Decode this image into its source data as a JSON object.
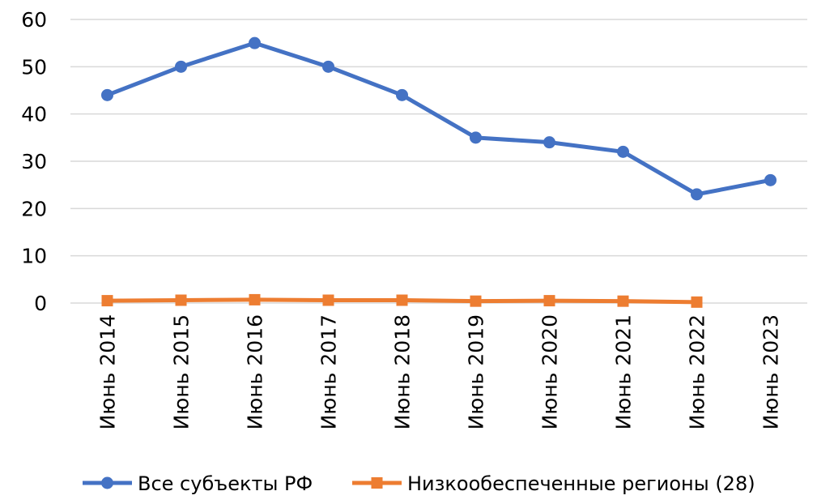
{
  "chart_data": {
    "type": "line",
    "categories": [
      "Июнь 2014",
      "Июнь 2015",
      "Июнь 2016",
      "Июнь 2017",
      "Июнь 2018",
      "Июнь 2019",
      "Июнь 2020",
      "Июнь 2021",
      "Июнь 2022",
      "Июнь 2023"
    ],
    "series": [
      {
        "name": "Все субъекты РФ",
        "color": "#4472c4",
        "marker": "circle",
        "values": [
          44,
          50,
          55,
          50,
          44,
          35,
          34,
          32,
          23,
          26
        ]
      },
      {
        "name": "Низкообеспеченные регионы (28)",
        "color": "#ed7d31",
        "marker": "square",
        "values": [
          0.5,
          0.6,
          0.7,
          0.6,
          0.6,
          0.4,
          0.5,
          0.4,
          0.2,
          null
        ]
      }
    ],
    "ylim": [
      0,
      60
    ],
    "yticks": [
      "0",
      "10",
      "20",
      "30",
      "40",
      "50",
      "60"
    ],
    "grid": true,
    "legend_position": "bottom",
    "title": "",
    "xlabel": "",
    "ylabel": ""
  }
}
